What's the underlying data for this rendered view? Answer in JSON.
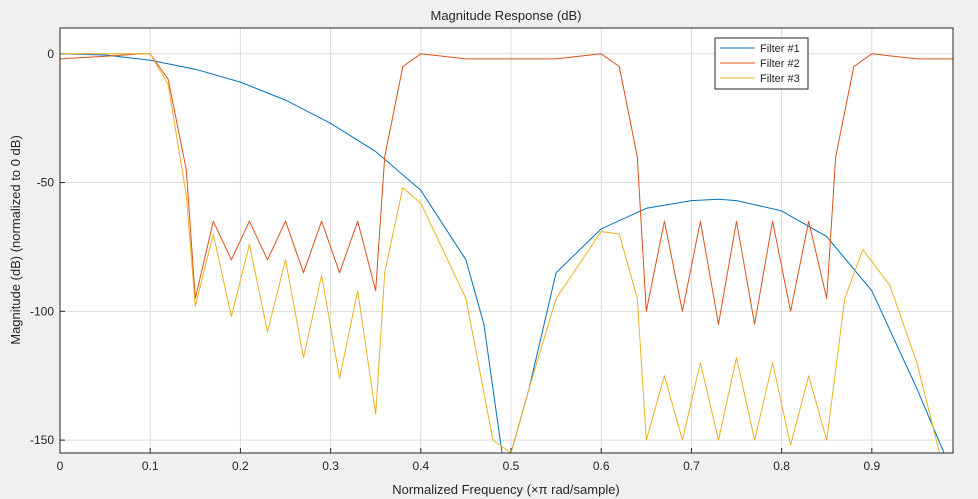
{
  "chart_data": {
    "type": "line",
    "title": "Magnitude Response (dB)",
    "xlabel": "Normalized Frequency (×π rad/sample)",
    "ylabel": "Magnitude (dB) (normalized to 0 dB)",
    "xlim": [
      0,
      0.99
    ],
    "ylim": [
      -155,
      10
    ],
    "grid": true,
    "legend_position": "top-right",
    "x_ticks": [
      0,
      0.1,
      0.2,
      0.3,
      0.4,
      0.5,
      0.6,
      0.7,
      0.8,
      0.9
    ],
    "x_tick_labels": [
      "0",
      "0.1",
      "0.2",
      "0.3",
      "0.4",
      "0.5",
      "0.6",
      "0.7",
      "0.8",
      "0.9"
    ],
    "y_ticks": [
      0,
      -50,
      -100,
      -150
    ],
    "y_tick_labels": [
      "0",
      "-50",
      "-100",
      "-150"
    ],
    "series": [
      {
        "name": "Filter #1",
        "color": "#0072BD",
        "x": [
          0,
          0.05,
          0.1,
          0.15,
          0.2,
          0.25,
          0.3,
          0.35,
          0.4,
          0.45,
          0.47,
          0.49,
          0.5,
          0.52,
          0.55,
          0.6,
          0.65,
          0.7,
          0.73,
          0.75,
          0.8,
          0.85,
          0.9,
          0.95,
          0.98
        ],
        "y": [
          0,
          -0.5,
          -2.5,
          -6,
          -11,
          -18,
          -27,
          -38,
          -53,
          -80,
          -105,
          -155,
          -155,
          -130,
          -85,
          -68,
          -60,
          -57,
          -56.5,
          -57,
          -61,
          -71,
          -92,
          -130,
          -155
        ]
      },
      {
        "name": "Filter #2",
        "color": "#D95319",
        "x": [
          0,
          0.05,
          0.09,
          0.1,
          0.12,
          0.14,
          0.15,
          0.17,
          0.19,
          0.21,
          0.23,
          0.25,
          0.27,
          0.29,
          0.31,
          0.33,
          0.35,
          0.36,
          0.38,
          0.4,
          0.45,
          0.5,
          0.55,
          0.6,
          0.62,
          0.64,
          0.65,
          0.67,
          0.69,
          0.71,
          0.73,
          0.75,
          0.77,
          0.79,
          0.81,
          0.83,
          0.85,
          0.86,
          0.88,
          0.9,
          0.95,
          0.99
        ],
        "y": [
          -2,
          -1,
          0,
          0,
          -10,
          -45,
          -95,
          -65,
          -80,
          -65,
          -80,
          -65,
          -85,
          -65,
          -85,
          -65,
          -92,
          -40,
          -5,
          0,
          -2,
          -2,
          -2,
          0,
          -5,
          -40,
          -100,
          -65,
          -100,
          -65,
          -105,
          -65,
          -105,
          -65,
          -100,
          -65,
          -95,
          -40,
          -5,
          0,
          -2,
          -2
        ]
      },
      {
        "name": "Filter #3",
        "color": "#EDB120",
        "x": [
          0,
          0.05,
          0.09,
          0.1,
          0.12,
          0.14,
          0.15,
          0.17,
          0.19,
          0.21,
          0.23,
          0.25,
          0.27,
          0.29,
          0.31,
          0.33,
          0.35,
          0.36,
          0.38,
          0.4,
          0.45,
          0.48,
          0.5,
          0.52,
          0.55,
          0.6,
          0.62,
          0.64,
          0.65,
          0.67,
          0.69,
          0.71,
          0.73,
          0.75,
          0.77,
          0.79,
          0.81,
          0.83,
          0.85,
          0.87,
          0.89,
          0.92,
          0.95,
          0.975
        ],
        "y": [
          0,
          0,
          0,
          0,
          -12,
          -55,
          -98,
          -70,
          -102,
          -74,
          -108,
          -80,
          -118,
          -86,
          -126,
          -92,
          -140,
          -85,
          -52,
          -58,
          -95,
          -150,
          -155,
          -130,
          -95,
          -69,
          -70,
          -95,
          -150,
          -125,
          -150,
          -120,
          -150,
          -118,
          -150,
          -120,
          -152,
          -125,
          -150,
          -95,
          -76,
          -90,
          -120,
          -155
        ]
      }
    ]
  }
}
